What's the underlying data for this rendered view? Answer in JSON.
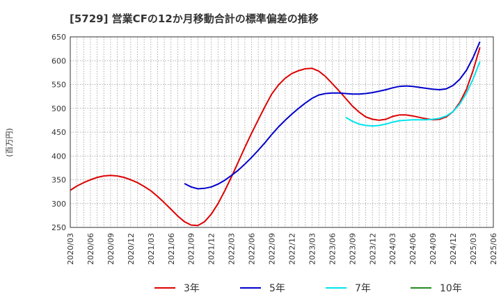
{
  "chart_data": {
    "type": "line",
    "title": "[5729]  営業CFの12か月移動合計の標準偏差の推移",
    "ylabel": "(百万円)",
    "xlabel": "",
    "ylim": [
      250,
      650
    ],
    "y_ticks": [
      250,
      300,
      350,
      400,
      450,
      500,
      550,
      600,
      650
    ],
    "x_ticks": [
      "2020/03",
      "2020/06",
      "2020/09",
      "2020/12",
      "2021/03",
      "2021/06",
      "2021/09",
      "2021/12",
      "2022/03",
      "2022/06",
      "2022/09",
      "2022/12",
      "2023/03",
      "2023/06",
      "2023/09",
      "2023/12",
      "2024/03",
      "2024/06",
      "2024/09",
      "2024/12",
      "2025/03",
      "2025/06"
    ],
    "grid": true,
    "legend_position": "bottom",
    "series": [
      {
        "name": "3年",
        "color": "#dd0000",
        "x_start": "2020/03",
        "values": [
          328,
          337,
          344,
          350,
          355,
          358,
          359,
          358,
          355,
          350,
          344,
          336,
          327,
          315,
          302,
          288,
          274,
          262,
          255,
          254,
          262,
          278,
          300,
          327,
          356,
          387,
          418,
          448,
          476,
          504,
          530,
          549,
          563,
          573,
          579,
          583,
          584,
          578,
          567,
          552,
          537,
          521,
          505,
          492,
          482,
          477,
          475,
          477,
          483,
          486,
          486,
          484,
          481,
          478,
          476,
          477,
          482,
          493,
          512,
          540,
          580,
          628
        ]
      },
      {
        "name": "5年",
        "color": "#0000cc",
        "x_start": "2021/08",
        "values": [
          342,
          335,
          331,
          332,
          335,
          341,
          349,
          359,
          370,
          383,
          397,
          412,
          428,
          445,
          461,
          475,
          488,
          500,
          511,
          521,
          528,
          531,
          532,
          532,
          531,
          530,
          530,
          531,
          533,
          536,
          539,
          543,
          546,
          547,
          546,
          544,
          542,
          540,
          539,
          541,
          548,
          561,
          580,
          607,
          640
        ]
      },
      {
        "name": "7年",
        "color": "#00e5ee",
        "x_start": "2023/08",
        "values": [
          481,
          473,
          467,
          464,
          463,
          464,
          467,
          471,
          474,
          475,
          476,
          476,
          476,
          477,
          479,
          484,
          493,
          509,
          532,
          562,
          598
        ]
      },
      {
        "name": "10年",
        "color": "#228b22",
        "x_start": "2025/03",
        "values": []
      }
    ]
  }
}
